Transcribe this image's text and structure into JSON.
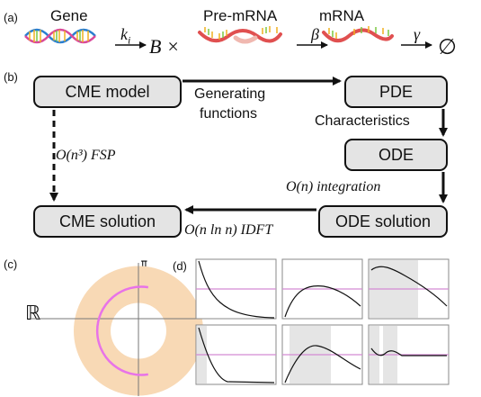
{
  "panel_a": {
    "label": "(a)",
    "gene": "Gene",
    "k_i": "k",
    "k_sub": "i",
    "B_times": "B ×",
    "premrna": "Pre-mRNA",
    "beta": "β",
    "mrna": "mRNA",
    "gamma": "γ",
    "empty": "∅"
  },
  "panel_b": {
    "label": "(b)",
    "cme_model": "CME model",
    "pde": "PDE",
    "ode": "ODE",
    "cme_solution": "CME solution",
    "ode_solution": "ODE solution",
    "generating_1": "Generating",
    "generating_2": "functions",
    "characteristics": "Characteristics",
    "fsp": "O(n³) FSP",
    "integration": "O(n) integration",
    "idft": "O(n ln n) IDFT"
  },
  "panel_c": {
    "label": "(c)",
    "real": "ℝ",
    "imag": "𝕀"
  },
  "panel_d": {
    "label": "(d)"
  },
  "colors": {
    "box_fill": "#e4e4e4",
    "annulus": "#f8d9b5",
    "contour": "#e873e8",
    "threshold": "#d48bd4",
    "shade": "#e5e5e5"
  }
}
